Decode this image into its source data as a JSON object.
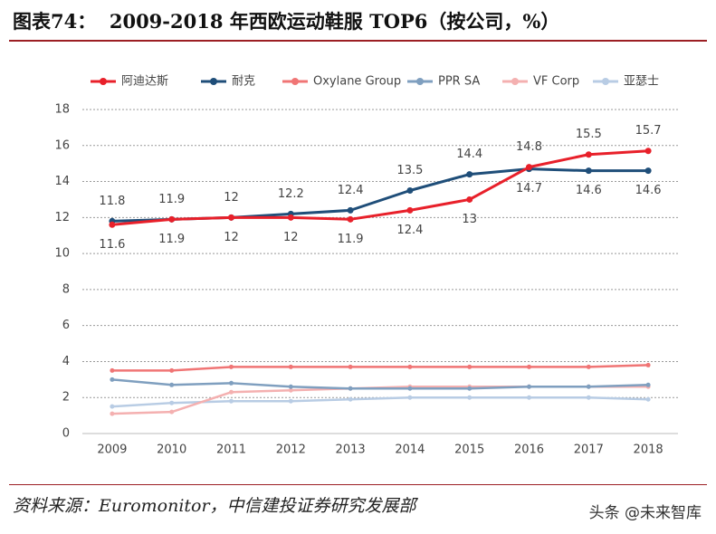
{
  "chart_data": {
    "type": "line",
    "title": "图表74：  2009-2018 年西欧运动鞋服 TOP6（按公司，%）",
    "source": "资料来源：Euromonitor，中信建投证券研究发展部",
    "watermark": "头条 @未来智库",
    "categories": [
      "2009",
      "2010",
      "2011",
      "2012",
      "2013",
      "2014",
      "2015",
      "2016",
      "2017",
      "2018"
    ],
    "ylim": [
      0,
      18
    ],
    "yticks": [
      0,
      2,
      4,
      6,
      8,
      10,
      12,
      14,
      16,
      18
    ],
    "grid": true,
    "legend": "top",
    "series": [
      {
        "name": "阿迪达斯",
        "color": "#e8202a",
        "data_labels": true,
        "values": [
          11.6,
          11.9,
          12,
          12,
          11.9,
          12.4,
          13,
          14.8,
          15.5,
          15.7
        ]
      },
      {
        "name": "耐克",
        "color": "#1f4e79",
        "data_labels": true,
        "values": [
          11.8,
          11.9,
          12,
          12.2,
          12.4,
          13.5,
          14.4,
          14.7,
          14.6,
          14.6
        ]
      },
      {
        "name": "Oxylane Group",
        "color": "#f07575",
        "values": [
          3.5,
          3.5,
          3.7,
          3.7,
          3.7,
          3.7,
          3.7,
          3.7,
          3.7,
          3.8
        ]
      },
      {
        "name": "PPR SA",
        "color": "#7f9fbf",
        "values": [
          3.0,
          2.7,
          2.8,
          2.6,
          2.5,
          2.5,
          2.5,
          2.6,
          2.6,
          2.7
        ]
      },
      {
        "name": "VF Corp",
        "color": "#f4b0b0",
        "values": [
          1.1,
          1.2,
          2.3,
          2.4,
          2.5,
          2.6,
          2.6,
          2.6,
          2.6,
          2.6
        ]
      },
      {
        "name": "亚瑟士",
        "color": "#b8cce4",
        "values": [
          1.5,
          1.7,
          1.8,
          1.8,
          1.9,
          2.0,
          2.0,
          2.0,
          2.0,
          1.9
        ]
      }
    ]
  }
}
